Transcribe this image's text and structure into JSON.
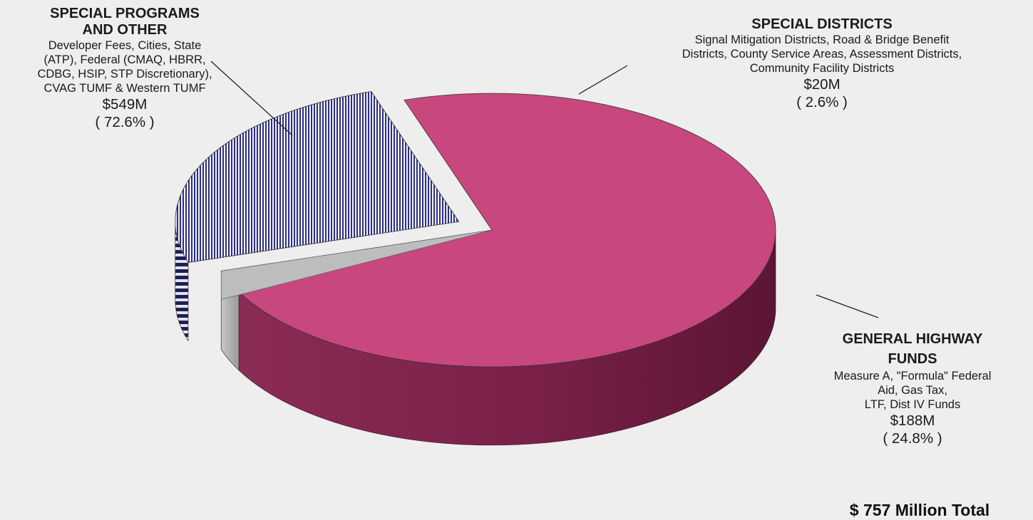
{
  "chart_data": {
    "type": "pie",
    "style": "3d-exploded",
    "total_label": "$ 757 Million Total",
    "slices": [
      {
        "title_lines": [
          "SPECIAL PROGRAMS",
          "AND OTHER"
        ],
        "description_lines": [
          "Developer Fees, Cities, State",
          "(ATP),  Federal (CMAQ, HBRR,",
          "CDBG, HSIP, STP Discretionary),",
          "CVAG TUMF & Western TUMF"
        ],
        "amount": "$549M",
        "percent_label": "( 72.6% )",
        "value": 549,
        "percent": 72.6,
        "color": "#c8477f",
        "pattern": "solid"
      },
      {
        "title_lines": [
          "SPECIAL DISTRICTS"
        ],
        "description_lines": [
          "Signal Mitigation Districts, Road & Bridge Benefit",
          "Districts, County Service Areas, Assessment Districts,",
          "Community Facility Districts"
        ],
        "amount": "$20M",
        "percent_label": "( 2.6% )",
        "value": 20,
        "percent": 2.6,
        "color": "#e8e8e8",
        "pattern": "diagonal-hatch"
      },
      {
        "title_lines": [
          "GENERAL HIGHWAY",
          "FUNDS"
        ],
        "description_lines": [
          "Measure A, \"Formula\" Federal",
          "Aid, Gas Tax,",
          "LTF, Dist IV Funds"
        ],
        "amount": "$188M",
        "percent_label": "( 24.8% )",
        "value": 188,
        "percent": 24.8,
        "color": "#3c3f86",
        "pattern": "vertical-stripes"
      }
    ]
  }
}
